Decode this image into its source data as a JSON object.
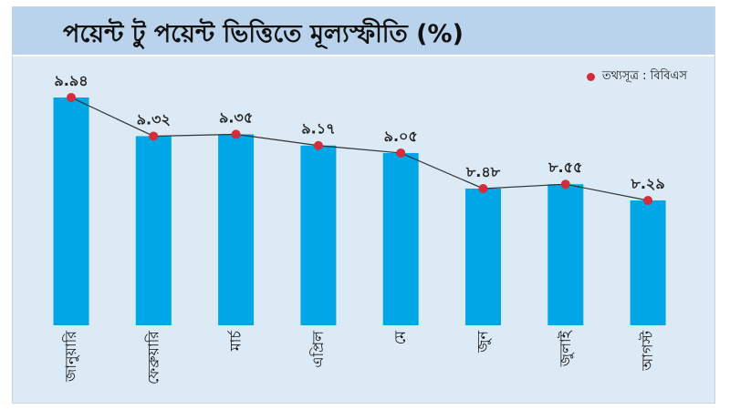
{
  "chart_data": {
    "type": "bar",
    "title": "পয়েন্ট টু পয়েন্ট ভিত্তিতে মূল্যস্ফীতি (%)",
    "legend": {
      "label": "তথ্যসূত্র : বিবিএস",
      "position": "top-right"
    },
    "categories": [
      "জানুয়ারি",
      "ফেব্রুয়ারি",
      "মার্চ",
      "এপ্রিল",
      "মে",
      "জুন",
      "জুলাই",
      "আগস্ট"
    ],
    "values": [
      9.94,
      9.32,
      9.35,
      9.17,
      9.05,
      8.48,
      8.55,
      8.29
    ],
    "value_labels": [
      "৯.৯৪",
      "৯.৩২",
      "৯.৩৫",
      "৯.১৭",
      "৯.০৫",
      "৮.৪৮",
      "৮.৫৫",
      "৮.২৯"
    ],
    "overlay": "line-with-markers",
    "grid": false,
    "colors": {
      "bar": "#00a6e6",
      "marker": "#d42d3a",
      "line": "#333333",
      "panel": "#dceaf5",
      "title_bar": "#b9d3ec"
    }
  }
}
